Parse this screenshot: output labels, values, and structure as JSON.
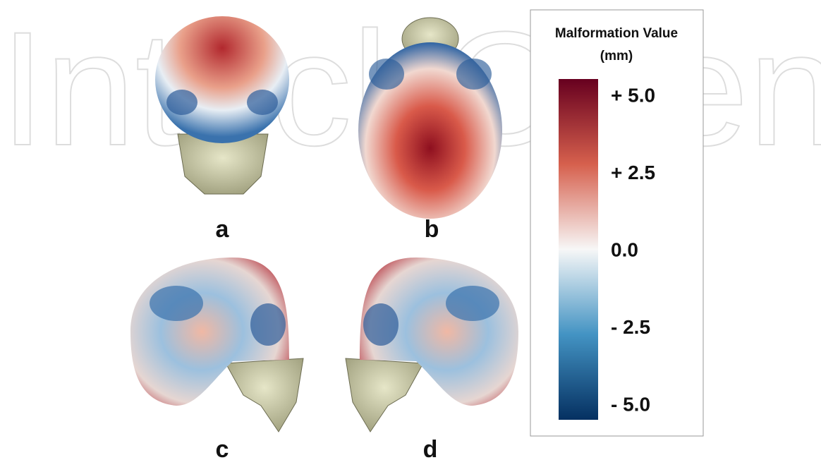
{
  "watermark": "IntechOpen",
  "panels": [
    {
      "label": "a"
    },
    {
      "label": "b"
    },
    {
      "label": "c"
    },
    {
      "label": "d"
    }
  ],
  "colorbar": {
    "title": "Malformation Value",
    "unit": "(mm)",
    "ylim": [
      -5.45,
      5.57
    ],
    "yticks": [
      {
        "value": 5,
        "label": "+ 5.0"
      },
      {
        "value": 2.5,
        "label": "+ 2.5"
      },
      {
        "value": 0,
        "label": "0.0"
      },
      {
        "value": -2.5,
        "label": "- 2.5"
      },
      {
        "value": -5,
        "label": "- 5.0"
      }
    ]
  }
}
